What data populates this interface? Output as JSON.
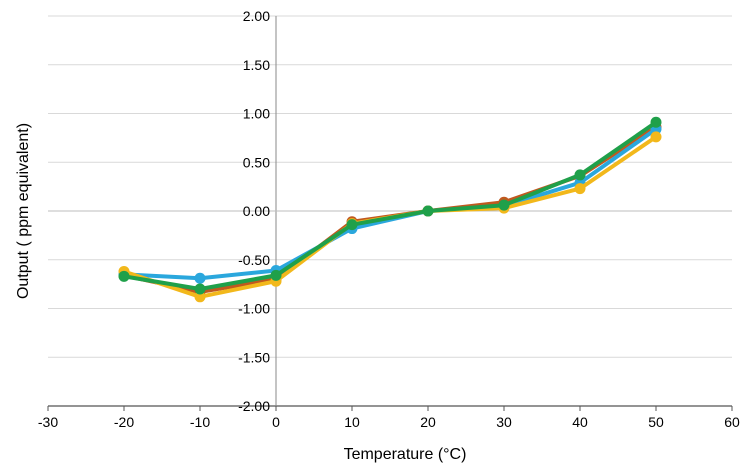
{
  "chart_data": {
    "type": "line",
    "title": "",
    "xlabel": "Temperature (°C)",
    "ylabel": "Output ( ppm equivalent)",
    "xlim": [
      -30,
      60
    ],
    "ylim": [
      -2.0,
      2.0
    ],
    "x_ticks": [
      -30,
      -20,
      -10,
      0,
      10,
      20,
      30,
      40,
      50,
      60
    ],
    "y_ticks": [
      -2.0,
      -1.5,
      -1.0,
      -0.5,
      0.0,
      0.5,
      1.0,
      1.5,
      2.0
    ],
    "x_tick_labels": [
      "-30",
      "-20",
      "-10",
      "0",
      "10",
      "20",
      "30",
      "40",
      "50",
      "60"
    ],
    "y_tick_labels": [
      "-2.00",
      "-1.50",
      "-1.00",
      "-0.50",
      "0.00",
      "0.50",
      "1.00",
      "1.50",
      "2.00"
    ],
    "grid": "horizontal",
    "legend": "none",
    "x": [
      -20,
      -10,
      0,
      10,
      20,
      30,
      40,
      50
    ],
    "series": [
      {
        "color": "#c0591f",
        "values": [
          -0.66,
          -0.83,
          -0.7,
          -0.11,
          0.0,
          0.09,
          0.36,
          0.86
        ]
      },
      {
        "color": "#2aa7dd",
        "values": [
          -0.65,
          -0.69,
          -0.61,
          -0.18,
          0.0,
          0.05,
          0.29,
          0.84
        ]
      },
      {
        "color": "#f2b81b",
        "values": [
          -0.62,
          -0.88,
          -0.72,
          -0.13,
          0.0,
          0.03,
          0.23,
          0.76
        ]
      },
      {
        "color": "#1fa04a",
        "values": [
          -0.67,
          -0.8,
          -0.66,
          -0.14,
          0.0,
          0.06,
          0.37,
          0.91
        ]
      }
    ]
  }
}
